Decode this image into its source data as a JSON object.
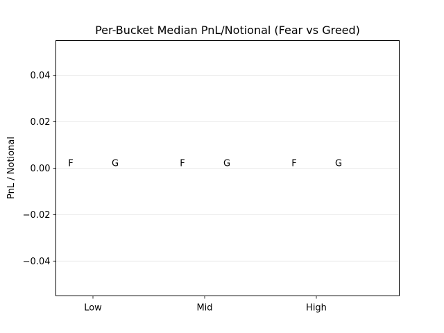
{
  "chart_data": {
    "type": "bar",
    "title": "Per-Bucket Median PnL/Notional (Fear vs Greed)",
    "xlabel": "",
    "ylabel": "PnL / Notional",
    "categories": [
      "Low",
      "Mid",
      "High"
    ],
    "series": [
      {
        "label": "F",
        "values": [
          0.0,
          0.0,
          0.0
        ]
      },
      {
        "label": "G",
        "values": [
          0.0,
          0.0,
          0.0
        ]
      }
    ],
    "ylim": [
      -0.055,
      0.055
    ],
    "yticks": [
      -0.04,
      -0.02,
      0.0,
      0.02,
      0.04
    ],
    "ytick_labels": [
      "−0.04",
      "−0.02",
      "0.00",
      "0.02",
      "0.04"
    ],
    "grid": "y",
    "legend": "none"
  }
}
